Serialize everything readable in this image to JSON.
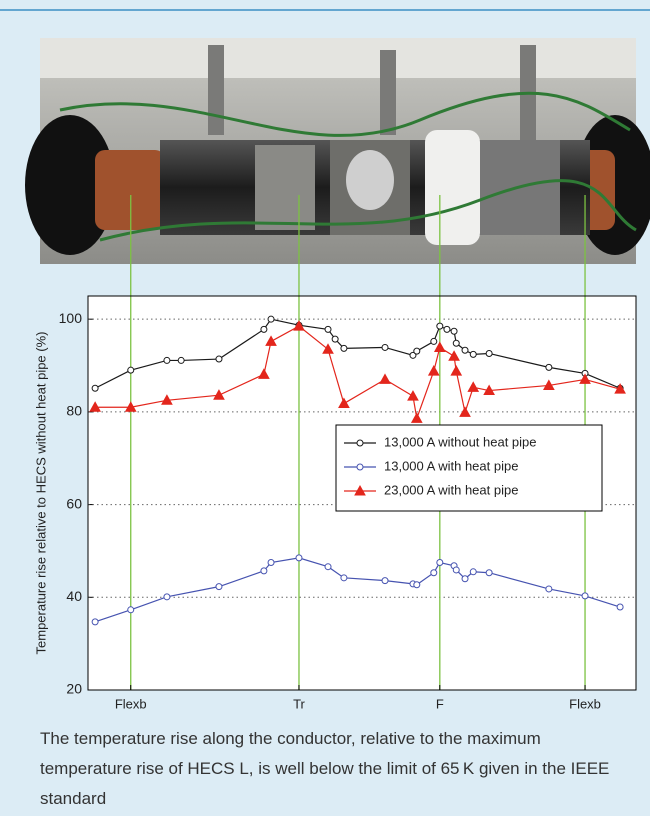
{
  "chart_data": {
    "type": "line",
    "y_label": "Temperature rise relative to HECS without heat pipe (%)",
    "xlim": [
      0,
      100
    ],
    "xticks": [
      {
        "value": 7.8,
        "label": "Flexb"
      },
      {
        "value": 38.5,
        "label": "Tr"
      },
      {
        "value": 64.2,
        "label": "F"
      },
      {
        "value": 90.7,
        "label": "Flexb"
      }
    ],
    "ylim": [
      20,
      105
    ],
    "yticks": [
      20,
      40,
      60,
      80,
      100
    ],
    "grid": true,
    "legend": "right",
    "series": [
      {
        "name": "13,000 A without heat pipe",
        "color": "#1a1a1a",
        "marker": "circle",
        "x": [
          1.3,
          7.8,
          14.4,
          17.0,
          23.9,
          32.1,
          33.4,
          38.5,
          43.8,
          45.1,
          46.7,
          54.2,
          59.3,
          60.0,
          63.1,
          64.2,
          65.5,
          66.8,
          67.2,
          68.8,
          70.3,
          73.2,
          84.1,
          90.7,
          97.1
        ],
        "values": [
          85.1,
          89.0,
          91.1,
          91.1,
          91.4,
          97.8,
          100,
          98.7,
          97.8,
          95.7,
          93.7,
          93.9,
          92.2,
          93.1,
          95.2,
          98.5,
          97.8,
          97.4,
          94.8,
          93.3,
          92.4,
          92.6,
          89.6,
          88.3,
          85.1
        ]
      },
      {
        "name": "13,000 A with heat pipe",
        "color": "#4653b0",
        "marker": "circle",
        "x": [
          1.3,
          7.8,
          14.4,
          23.9,
          32.1,
          33.4,
          38.5,
          43.8,
          46.7,
          54.2,
          59.3,
          60.0,
          63.1,
          64.2,
          66.8,
          67.2,
          68.8,
          70.3,
          73.2,
          84.1,
          90.7,
          97.1
        ],
        "values": [
          34.7,
          37.3,
          40.1,
          42.3,
          45.7,
          47.5,
          48.5,
          46.6,
          44.2,
          43.6,
          42.9,
          42.7,
          45.3,
          47.5,
          46.8,
          45.9,
          44.0,
          45.5,
          45.3,
          41.8,
          40.3,
          37.9
        ]
      },
      {
        "name": "23,000 A with heat pipe",
        "color": "#e3261c",
        "marker": "triangle",
        "x": [
          1.3,
          7.8,
          14.4,
          23.9,
          32.1,
          33.4,
          38.5,
          43.8,
          46.7,
          54.2,
          59.3,
          60.0,
          63.1,
          64.2,
          66.8,
          67.2,
          68.8,
          70.3,
          73.2,
          84.1,
          90.7,
          97.1
        ],
        "values": [
          81.0,
          81.0,
          82.5,
          83.6,
          88.1,
          95.2,
          98.5,
          93.5,
          81.8,
          87.0,
          83.4,
          78.6,
          88.8,
          93.9,
          92.0,
          88.8,
          79.9,
          85.3,
          84.6,
          85.7,
          87.0,
          84.9
        ]
      }
    ],
    "caption": "The temperature rise along the conductor, relative to the maximum temperature rise of HECS L, is well below the limit of 65 K given in the IEEE standard"
  }
}
